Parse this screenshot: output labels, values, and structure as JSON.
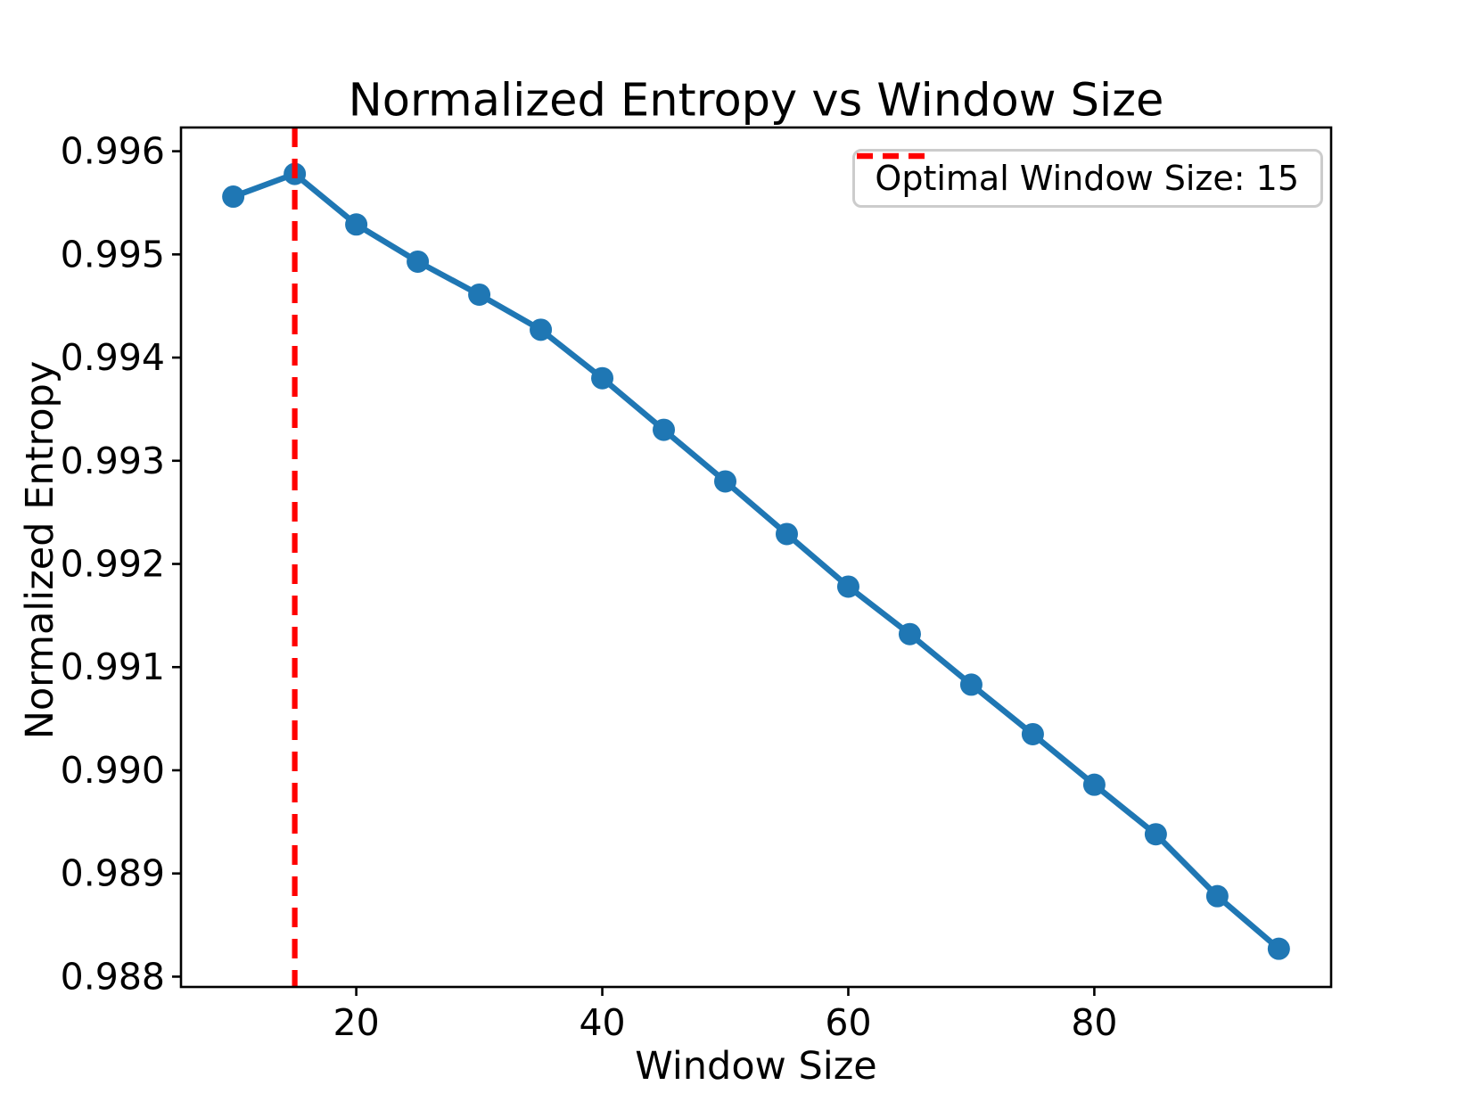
{
  "chart_data": {
    "type": "line",
    "title": "Normalized Entropy vs Window Size",
    "xlabel": "Window Size",
    "ylabel": "Normalized Entropy",
    "x": [
      10,
      15,
      20,
      25,
      30,
      35,
      40,
      45,
      50,
      55,
      60,
      65,
      70,
      75,
      80,
      85,
      90,
      95
    ],
    "y": [
      0.99556,
      0.99578,
      0.99529,
      0.99493,
      0.99461,
      0.99427,
      0.9938,
      0.9933,
      0.9928,
      0.99229,
      0.99178,
      0.99132,
      0.99083,
      0.99035,
      0.98986,
      0.98938,
      0.98878,
      0.98827
    ],
    "xlim": [
      5.75,
      99.25
    ],
    "ylim": [
      0.9879,
      0.99623
    ],
    "xticks": {
      "values": [
        20,
        40,
        60,
        80
      ],
      "labels": [
        "20",
        "40",
        "60",
        "80"
      ]
    },
    "yticks": {
      "values": [
        0.988,
        0.989,
        0.99,
        0.991,
        0.992,
        0.993,
        0.994,
        0.995,
        0.996
      ],
      "labels": [
        "0.988",
        "0.989",
        "0.990",
        "0.991",
        "0.992",
        "0.993",
        "0.994",
        "0.995",
        "0.996"
      ]
    },
    "grid": false,
    "line_color": "#1f77b4",
    "marker": "circle",
    "vline": {
      "x": 15,
      "color": "#ff0000",
      "style": "dashed"
    },
    "legend": {
      "position": "upper right",
      "entries": [
        {
          "label": "Optimal Window Size: 15",
          "color": "#ff0000",
          "dash": true
        }
      ]
    }
  }
}
